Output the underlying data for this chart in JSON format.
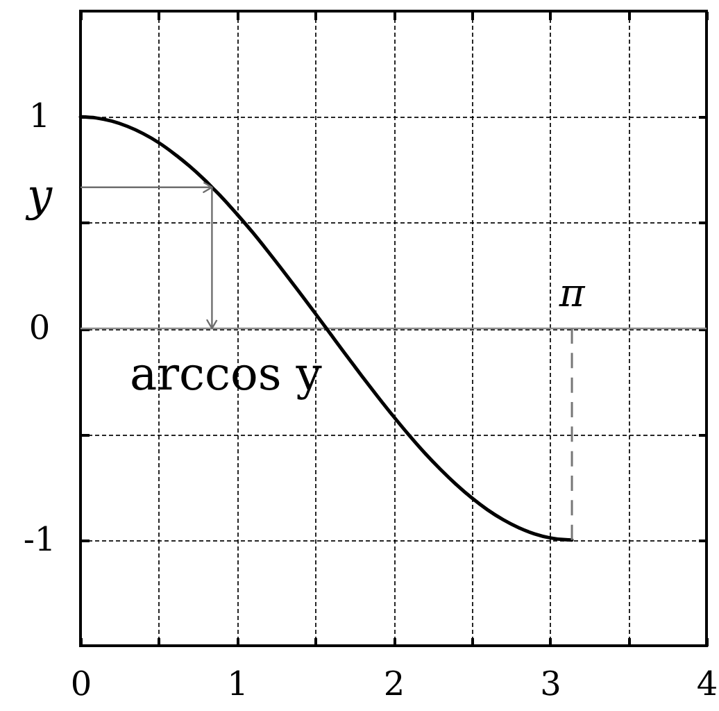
{
  "chart_data": {
    "type": "line",
    "x": [
      0,
      0.1,
      0.2,
      0.3,
      0.4,
      0.5,
      0.6,
      0.7,
      0.8,
      0.84,
      0.9,
      1.0,
      1.1,
      1.2,
      1.3,
      1.4,
      1.5,
      1.6,
      1.7,
      1.8,
      1.9,
      2.0,
      2.1,
      2.2,
      2.3,
      2.4,
      2.5,
      2.6,
      2.7,
      2.8,
      2.9,
      3.0,
      3.1,
      3.14
    ],
    "series": [
      {
        "color": "#000000",
        "values": [
          1.0,
          0.995,
          0.98,
          0.955,
          0.921,
          0.878,
          0.825,
          0.765,
          0.697,
          0.667,
          0.622,
          0.54,
          0.454,
          0.362,
          0.267,
          0.17,
          0.071,
          -0.029,
          -0.129,
          -0.227,
          -0.323,
          -0.416,
          -0.505,
          -0.589,
          -0.666,
          -0.737,
          -0.801,
          -0.857,
          -0.904,
          -0.942,
          -0.971,
          -0.99,
          -0.999,
          -1.0
        ]
      }
    ],
    "xlim": [
      0,
      4
    ],
    "ylim": [
      -1.5,
      1.5
    ],
    "xticks": [
      0,
      {
        "value": 0.5,
        "label": null
      },
      1,
      {
        "value": 1.5,
        "label": null
      },
      2,
      {
        "value": 2.5,
        "label": null
      },
      3,
      {
        "value": 3.5,
        "label": null
      },
      4
    ],
    "yticks": [
      -1,
      {
        "value": -0.5,
        "label": null
      },
      0,
      {
        "value": 0.5,
        "label": null
      },
      {
        "value": 0.667,
        "label": "y"
      },
      1
    ],
    "grid": true,
    "line_style": "solid",
    "ref_lines": [
      {
        "axis": "y",
        "value": 0,
        "color": "#8c8c8c"
      }
    ],
    "annotations": [
      {
        "text": "arccos y",
        "x": 0.84,
        "y": 0
      },
      {
        "text": "π",
        "x": 3.14,
        "y": 0
      }
    ]
  }
}
